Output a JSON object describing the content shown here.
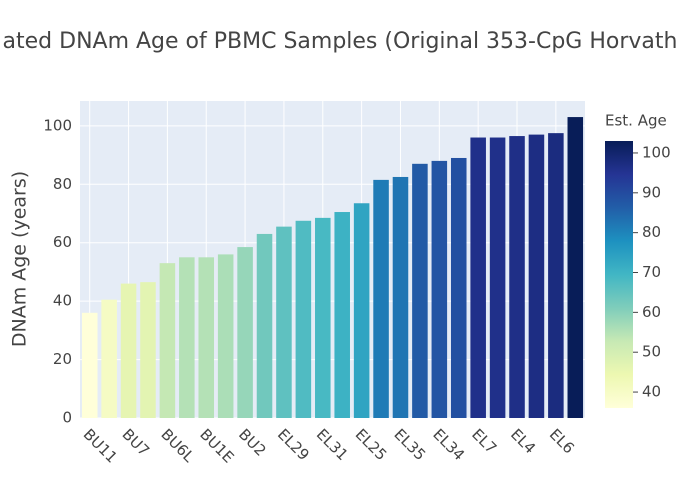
{
  "chart_data": {
    "type": "bar",
    "title": "ated DNAm Age of PBMC Samples (Original 353-CpG Horvath",
    "y_label": "DNAm Age (years)",
    "categories": [
      "BU11",
      null,
      "BU7",
      null,
      "BU6L",
      null,
      "BU1E",
      null,
      "BU2",
      null,
      "EL29",
      null,
      "EL31",
      null,
      "EL25",
      null,
      "EL35",
      null,
      "EL34",
      null,
      "EL7",
      null,
      "EL4",
      null,
      "EL6",
      null
    ],
    "values": [
      36,
      40.5,
      46,
      46.5,
      53,
      55,
      55,
      56,
      58.5,
      63,
      65.5,
      67.5,
      68.5,
      70.5,
      73.5,
      81.5,
      82.5,
      87,
      88,
      89,
      96,
      96,
      96.5,
      97,
      97.5,
      103
    ],
    "ylim": [
      0,
      108.5
    ],
    "yticks": [
      0,
      20,
      40,
      60,
      80,
      100
    ],
    "grid": true,
    "colorbar": {
      "title": "Est. Age",
      "clim": [
        36,
        103
      ],
      "ticks": [
        40,
        50,
        60,
        70,
        80,
        90,
        100
      ],
      "colorscale": [
        "#ffffd9",
        "#edf8b1",
        "#c7e9b4",
        "#7fcdbb",
        "#41b6c4",
        "#1d91c0",
        "#225ea8",
        "#253494",
        "#081d58"
      ]
    }
  }
}
